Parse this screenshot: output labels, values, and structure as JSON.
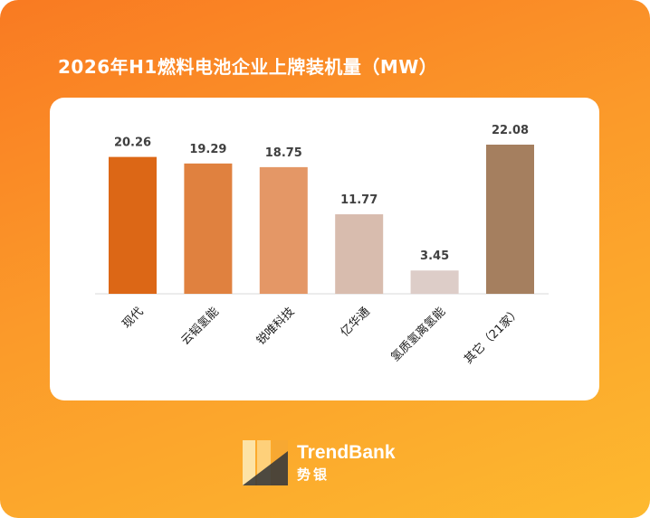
{
  "title": "2026年H1燃料电池企业上牌装机量（MW）",
  "brand": {
    "name_en": "TrendBank",
    "name_cn": "势银"
  },
  "chart_data": {
    "type": "bar",
    "categories": [
      "现代",
      "云韬氢能",
      "锐唯科技",
      "亿华通",
      "氢质氢离氢能",
      "其它（21家）"
    ],
    "values": [
      20.26,
      19.29,
      18.75,
      11.77,
      3.45,
      22.08
    ],
    "value_labels": [
      "20.26",
      "19.29",
      "18.75",
      "11.77",
      "3.45",
      "22.08"
    ],
    "colors": [
      "#dc6716",
      "#e0813f",
      "#e49766",
      "#d8bcae",
      "#ddcdc8",
      "#a57f5f"
    ],
    "axis_color": "#d9d9d9",
    "label_color": "#404040",
    "title": "2026年H1燃料电池企业上牌装机量（MW）",
    "xlabel": "",
    "ylabel": "",
    "ylim": [
      0,
      22.08
    ],
    "grid": false,
    "legend": "none"
  }
}
